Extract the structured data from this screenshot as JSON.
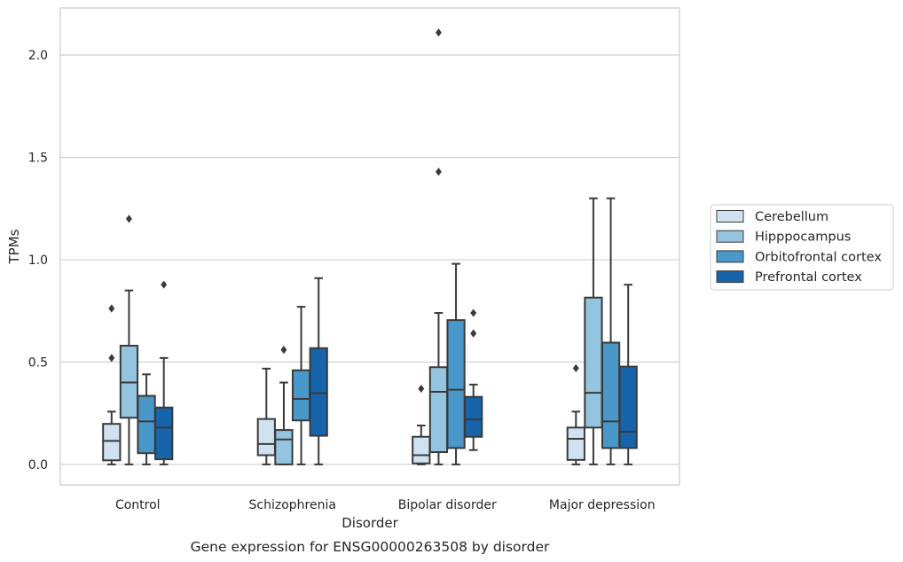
{
  "chart_data": {
    "type": "box",
    "caption": "Gene expression for ENSG00000263508 by disorder",
    "xlabel": "Disorder",
    "ylabel": "TPMs",
    "ylim": [
      -0.1,
      2.23
    ],
    "yticks": [
      0.0,
      0.5,
      1.0,
      1.5,
      2.0
    ],
    "ytick_labels": [
      "0.0",
      "0.5",
      "1.0",
      "1.5",
      "2.0"
    ],
    "grid": "horizontal",
    "legend_position": "right",
    "categories": [
      "Control",
      "Schizophrenia",
      "Bipolar disorder",
      "Major depression"
    ],
    "series": [
      {
        "name": "Cerebellum",
        "color": "#d0e1f2",
        "boxes": [
          {
            "whislo": 0.0,
            "q1": 0.02,
            "med": 0.115,
            "q3": 0.198,
            "whishi": 0.258,
            "fliers": [
              0.52,
              0.762
            ]
          },
          {
            "whislo": 0.0,
            "q1": 0.045,
            "med": 0.1,
            "q3": 0.222,
            "whishi": 0.468,
            "fliers": []
          },
          {
            "whislo": 0.0,
            "q1": 0.005,
            "med": 0.045,
            "q3": 0.135,
            "whishi": 0.19,
            "fliers": [
              0.37
            ]
          },
          {
            "whislo": 0.0,
            "q1": 0.022,
            "med": 0.125,
            "q3": 0.18,
            "whishi": 0.258,
            "fliers": [
              0.47
            ]
          }
        ]
      },
      {
        "name": "Hipppocampus",
        "color": "#94c4df",
        "boxes": [
          {
            "whislo": 0.0,
            "q1": 0.228,
            "med": 0.4,
            "q3": 0.58,
            "whishi": 0.85,
            "fliers": [
              1.2
            ]
          },
          {
            "whislo": 0.0,
            "q1": 0.0,
            "med": 0.122,
            "q3": 0.168,
            "whishi": 0.4,
            "fliers": [
              0.56
            ]
          },
          {
            "whislo": 0.0,
            "q1": 0.06,
            "med": 0.355,
            "q3": 0.475,
            "whishi": 0.74,
            "fliers": [
              1.43,
              2.11
            ]
          },
          {
            "whislo": 0.0,
            "q1": 0.18,
            "med": 0.35,
            "q3": 0.815,
            "whishi": 1.3,
            "fliers": []
          }
        ]
      },
      {
        "name": "Orbitofrontal cortex",
        "color": "#4a98c9",
        "boxes": [
          {
            "whislo": 0.0,
            "q1": 0.055,
            "med": 0.21,
            "q3": 0.335,
            "whishi": 0.44,
            "fliers": []
          },
          {
            "whislo": 0.0,
            "q1": 0.215,
            "med": 0.32,
            "q3": 0.46,
            "whishi": 0.77,
            "fliers": []
          },
          {
            "whislo": 0.0,
            "q1": 0.08,
            "med": 0.365,
            "q3": 0.705,
            "whishi": 0.98,
            "fliers": []
          },
          {
            "whislo": 0.0,
            "q1": 0.08,
            "med": 0.21,
            "q3": 0.595,
            "whishi": 1.3,
            "fliers": []
          }
        ]
      },
      {
        "name": "Prefrontal cortex",
        "color": "#1764ab",
        "boxes": [
          {
            "whislo": 0.0,
            "q1": 0.025,
            "med": 0.18,
            "q3": 0.278,
            "whishi": 0.52,
            "fliers": [
              0.878
            ]
          },
          {
            "whislo": 0.0,
            "q1": 0.14,
            "med": 0.348,
            "q3": 0.568,
            "whishi": 0.91,
            "fliers": []
          },
          {
            "whislo": 0.07,
            "q1": 0.135,
            "med": 0.22,
            "q3": 0.33,
            "whishi": 0.39,
            "fliers": [
              0.64,
              0.74
            ]
          },
          {
            "whislo": 0.0,
            "q1": 0.08,
            "med": 0.16,
            "q3": 0.478,
            "whishi": 0.878,
            "fliers": []
          }
        ]
      }
    ]
  }
}
